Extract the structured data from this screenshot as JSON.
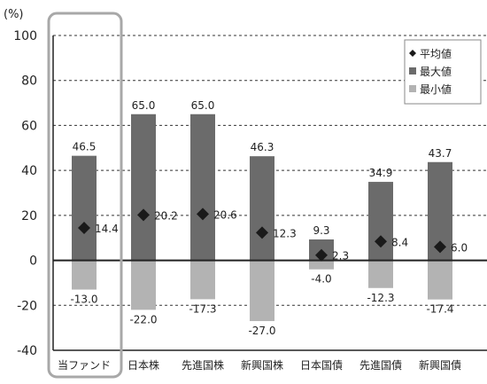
{
  "chart_data": {
    "type": "bar",
    "y_unit": "(%)",
    "ylim": [
      -40,
      100
    ],
    "y_ticks": [
      -40,
      -20,
      0,
      20,
      40,
      60,
      80,
      100
    ],
    "grid": true,
    "legend_position": "top-right",
    "highlighted_category": "当ファンド",
    "categories": [
      "当ファンド",
      "日本株",
      "先進国株",
      "新興国株",
      "日本国債",
      "先進国債",
      "新興国債"
    ],
    "series": [
      {
        "name": "平均値",
        "marker": "diamond",
        "values": [
          14.4,
          20.2,
          20.6,
          12.3,
          2.3,
          8.4,
          6.0
        ],
        "labels": [
          "14.4",
          "20.2",
          "20.6",
          "12.3",
          "2.3",
          "8.4",
          "6.0"
        ]
      },
      {
        "name": "最大値",
        "values": [
          46.5,
          65.0,
          65.0,
          46.3,
          9.3,
          34.9,
          43.7
        ],
        "labels": [
          "46.5",
          "65.0",
          "65.0",
          "46.3",
          "9.3",
          "34.9",
          "43.7"
        ]
      },
      {
        "name": "最小値",
        "values": [
          -13.0,
          -22.0,
          -17.3,
          -27.0,
          -4.0,
          -12.3,
          -17.4
        ],
        "labels": [
          "-13.0",
          "-22.0",
          "-17.3",
          "-27.0",
          "-4.0",
          "-12.3",
          "-17.4"
        ]
      }
    ],
    "colors": {
      "max": "#6b6b6b",
      "min": "#b3b3b3",
      "avg": "#1a1a1a",
      "highlight_border": "#a8a8a8",
      "axis": "#222222",
      "grid": "#333333"
    }
  }
}
